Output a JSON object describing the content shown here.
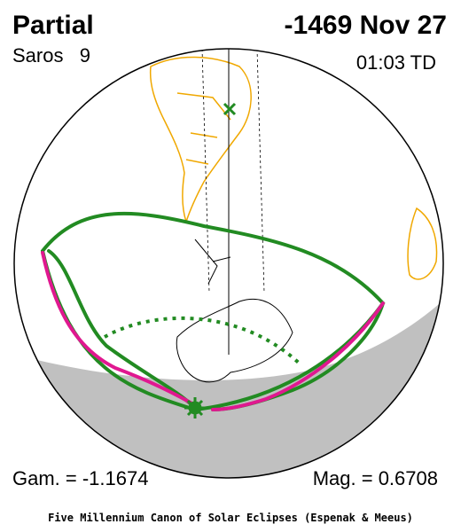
{
  "header": {
    "type": "Partial",
    "date": "-1469 Nov 27",
    "saros": "Saros   9",
    "time": "01:03 TD"
  },
  "footer": {
    "gamma": "Gam. = -1.1674",
    "magnitude": "Mag. = 0.6708",
    "credit": "Five Millennium Canon of Solar Eclipses (Espenak & Meeus)"
  }
}
